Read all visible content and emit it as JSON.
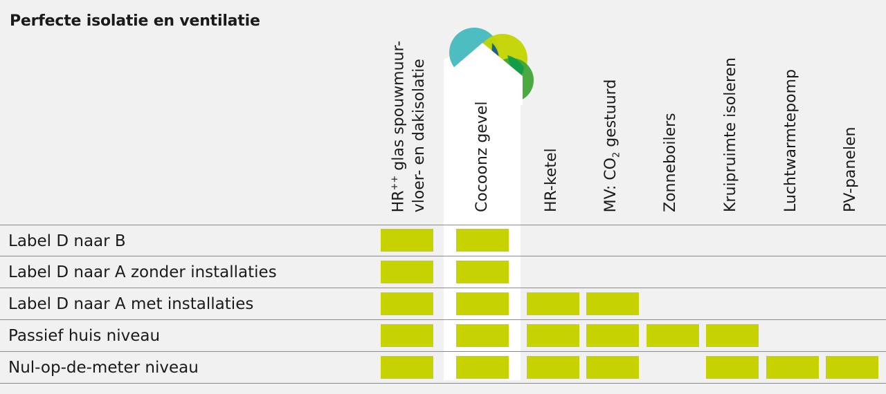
{
  "title": "Perfecte isolatie en ventilatie",
  "accent_color": "#c7d300",
  "columns": [
    {
      "line1": "HR",
      "sup": "++",
      "line1_rest": " glas spouwmuur-",
      "line2": "vloer- en dakisolatie"
    },
    {
      "label": "Cocoonz gevel"
    },
    {
      "label": "HR-ketel"
    },
    {
      "label_pre": "MV: CO",
      "sub": "2",
      "label_post": " gestuurd"
    },
    {
      "label": "Zonneboilers"
    },
    {
      "label": "Kruipruimte isoleren"
    },
    {
      "label": "Luchtwarmtepomp"
    },
    {
      "label": "PV-panelen"
    }
  ],
  "rows": [
    {
      "label": "Label D naar B",
      "marks": [
        true,
        true,
        false,
        false,
        false,
        false,
        false,
        false
      ]
    },
    {
      "label": "Label D naar A zonder installaties",
      "marks": [
        true,
        true,
        false,
        false,
        false,
        false,
        false,
        false
      ]
    },
    {
      "label": "Label D naar A met installaties",
      "marks": [
        true,
        true,
        true,
        true,
        false,
        false,
        false,
        false
      ]
    },
    {
      "label": "Passief huis niveau",
      "marks": [
        true,
        true,
        true,
        true,
        true,
        true,
        false,
        false
      ]
    },
    {
      "label": "Nul-op-de-meter niveau",
      "marks": [
        true,
        true,
        true,
        true,
        false,
        true,
        true,
        true
      ]
    }
  ]
}
